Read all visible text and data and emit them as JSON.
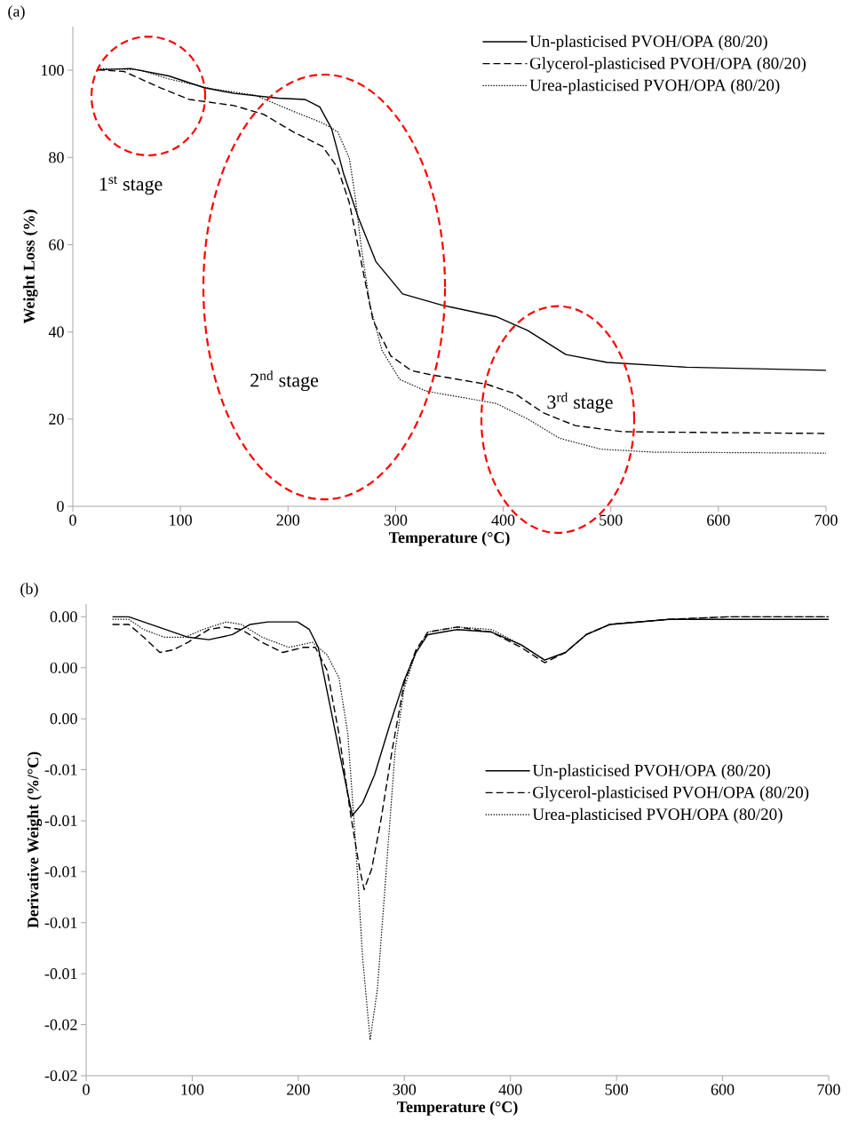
{
  "chart_data": [
    {
      "type": "line",
      "title": "(a)",
      "xlabel": "Temperature (°C)",
      "ylabel": "Weight Loss (%)",
      "xlim": [
        0,
        700
      ],
      "ylim": [
        0,
        110
      ],
      "xticks": [
        0,
        100,
        200,
        300,
        400,
        500,
        600,
        700
      ],
      "yticks": [
        0,
        20,
        40,
        60,
        80,
        100
      ],
      "legend": "top right",
      "marker": "none",
      "series": [
        {
          "name": "Un-plasticised PVOH/OPA (80/20)",
          "color": "#000000",
          "line_style": "solid",
          "x": [
            23.1,
            53.4,
            89.2,
            122.2,
            149.7,
            190.9,
            215.7,
            229.5,
            240.5,
            251.5,
            265.2,
            281.7,
            306.5,
            343.3,
            393.4,
            422.9,
            458.2,
            496.6,
            570.3,
            700
          ],
          "values": [
            100.1,
            100.4,
            98.7,
            96.0,
            94.7,
            93.6,
            93.3,
            91.6,
            86.6,
            76.4,
            66.3,
            56.1,
            48.7,
            46.1,
            43.5,
            40.3,
            34.8,
            33.0,
            31.9,
            31.2
          ]
        },
        {
          "name": "Glycerol-plasticised PVOH/OPA (80/20)",
          "color": "#000000",
          "line_style": "dashed",
          "x": [
            23.1,
            47.9,
            80.9,
            108.4,
            149.7,
            177.2,
            204.7,
            232.2,
            246,
            257,
            268,
            279,
            295.5,
            314.8,
            334.4,
            384.6,
            411.1,
            437.6,
            467.1,
            511.3,
            700
          ],
          "values": [
            100.1,
            99.7,
            96.0,
            93.3,
            91.9,
            89.9,
            85.9,
            82.5,
            77.7,
            69.6,
            56.1,
            42.6,
            34.5,
            31.1,
            30.1,
            28.0,
            25.8,
            21.4,
            18.5,
            17.1,
            16.7
          ]
        },
        {
          "name": "Urea-plasticised PVOH/OPA (80/20)",
          "color": "#000000",
          "line_style": "dotted",
          "x": [
            23.1,
            61.7,
            89.2,
            130.4,
            169,
            204.7,
            232.2,
            246,
            257,
            262.5,
            268,
            276.3,
            287.3,
            303.8,
            328.5,
            393.4,
            422.9,
            452.4,
            490.7,
            540.8,
            700
          ],
          "values": [
            100.4,
            100.1,
            98.0,
            95.7,
            94.3,
            90.6,
            87.9,
            85.9,
            79.8,
            71.0,
            59.5,
            46.0,
            35.8,
            29.1,
            26.4,
            23.6,
            20.0,
            15.6,
            13.1,
            12.4,
            12.2
          ]
        }
      ],
      "annotations": [
        "1$^{st}$ stage",
        "2$^{nd}$ stage",
        "3$^{rd}$ stage"
      ]
    },
    {
      "type": "line",
      "title": "(b)",
      "xlabel": "Temperature (°C)",
      "ylabel": "Derivative Weight (%/°C)",
      "xlim": [
        0,
        700
      ],
      "ylim": [
        -0.018,
        0.0005
      ],
      "xticks": [
        0,
        100,
        200,
        300,
        400,
        500,
        600,
        700
      ],
      "yticks": [
        {
          "value": 0,
          "label": "0.00"
        },
        {
          "value": -0.002,
          "label": "0.00"
        },
        {
          "value": -0.004,
          "label": "0.00"
        },
        {
          "value": -0.006,
          "label": "-0.01"
        },
        {
          "value": -0.008,
          "label": "-0.01"
        },
        {
          "value": -0.01,
          "label": "-0.01"
        },
        {
          "value": -0.012,
          "label": "-0.01"
        },
        {
          "value": -0.014,
          "label": "-0.01"
        },
        {
          "value": -0.016,
          "label": "-0.02"
        },
        {
          "value": -0.018,
          "label": "-0.02"
        }
      ],
      "legend": "right",
      "marker": "none",
      "series": [
        {
          "name": "Un-plasticised PVOH/OPA (80/20)",
          "color": "#000000",
          "line_style": "solid",
          "x": [
            24.8,
            40.2,
            68.1,
            96.0,
            115.6,
            137.9,
            154.6,
            171.4,
            199.3,
            210.4,
            218.8,
            230.0,
            241.1,
            250.9,
            260.7,
            271.9,
            285.8,
            299.8,
            310.9,
            322.1,
            350.0,
            382.1,
            410,
            432.3,
            451.9,
            471.4,
            493.8,
            549.5,
            605.4,
            700
          ],
          "values": [
            0.0,
            0.0,
            -0.0004,
            -0.0008,
            -0.0009,
            -0.0007,
            -0.0003,
            -0.0002,
            -0.0002,
            -0.0005,
            -0.0012,
            -0.0035,
            -0.0058,
            -0.0078,
            -0.0073,
            -0.0062,
            -0.0043,
            -0.0025,
            -0.0014,
            -0.0007,
            -0.0005,
            -0.0006,
            -0.0011,
            -0.0017,
            -0.0014,
            -0.0007,
            -0.0003,
            -0.0001,
            -0.0001,
            -0.0001
          ]
        },
        {
          "name": "Glycerol-plasticised PVOH/OPA (80/20)",
          "color": "#000000",
          "line_style": "dashed",
          "x": [
            24.8,
            40.2,
            54.2,
            69.5,
            82,
            96,
            115.6,
            129.5,
            146.3,
            165.8,
            185.3,
            204.9,
            216,
            227.2,
            238.4,
            249.5,
            257.9,
            262.1,
            269.1,
            277.4,
            288.6,
            299.8,
            310.9,
            322.1,
            350.0,
            382.1,
            410,
            432.3,
            451.9,
            471.4,
            493.8,
            549.5,
            605.4,
            700
          ],
          "values": [
            -0.0003,
            -0.0003,
            -0.0008,
            -0.0014,
            -0.0013,
            -0.001,
            -0.0005,
            -0.0004,
            -0.0005,
            -0.001,
            -0.0014,
            -0.0012,
            -0.0012,
            -0.0021,
            -0.0046,
            -0.0078,
            -0.0099,
            -0.0107,
            -0.0099,
            -0.0081,
            -0.0052,
            -0.0026,
            -0.0013,
            -0.0006,
            -0.0004,
            -0.0006,
            -0.0012,
            -0.0018,
            -0.0014,
            -0.0007,
            -0.0003,
            -0.0001,
            0.0,
            0.0
          ]
        },
        {
          "name": "Urea-plasticised PVOH/OPA (80/20)",
          "color": "#000000",
          "line_style": "dotted",
          "x": [
            24.8,
            40.2,
            54.2,
            73.7,
            93.2,
            110,
            132.3,
            146.3,
            165.8,
            190.9,
            213.3,
            227.2,
            238.4,
            246.7,
            253.7,
            260.7,
            267.7,
            274.6,
            283,
            291.4,
            299.8,
            310.9,
            322.1,
            350.0,
            382.1,
            410,
            432.3,
            451.9,
            471.4,
            493.8,
            549.5,
            605.4,
            700
          ],
          "values": [
            -0.0001,
            -0.0001,
            -0.0005,
            -0.0008,
            -0.0008,
            -0.0005,
            -0.0002,
            -0.0003,
            -0.0008,
            -0.0012,
            -0.001,
            -0.0015,
            -0.0024,
            -0.0046,
            -0.0087,
            -0.0134,
            -0.0166,
            -0.0146,
            -0.0099,
            -0.0052,
            -0.0028,
            -0.0014,
            -0.0006,
            -0.0004,
            -0.0005,
            -0.0011,
            -0.0017,
            -0.0014,
            -0.0007,
            -0.0003,
            -0.0001,
            0.0,
            0.0
          ]
        }
      ]
    }
  ]
}
